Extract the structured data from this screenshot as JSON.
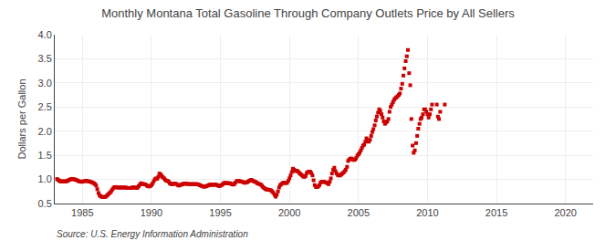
{
  "chart_data": {
    "type": "scatter",
    "title": "Monthly Montana Total Gasoline Through Company Outlets Price by All Sellers",
    "ylabel": "Dollars per Gallon",
    "annotations": [
      {
        "text": "Source: U.S. Energy Information Administration"
      }
    ],
    "color": "#cc0000",
    "marker": "square",
    "grid": true,
    "xlim": [
      1983.0,
      2022.0
    ],
    "ylim": [
      0.5,
      4.0
    ],
    "xticks": [
      1985,
      1990,
      1995,
      2000,
      2005,
      2010,
      2015,
      2020
    ],
    "yticks": [
      0.5,
      {
        "value": 1.0,
        "label": "1.0"
      },
      1.5,
      {
        "value": 2.0,
        "label": "2.0"
      },
      2.5,
      {
        "value": 3.0,
        "label": "3.0"
      },
      3.5,
      {
        "value": 4.0,
        "label": "4.0"
      }
    ],
    "x": [
      1983.17,
      1983.25,
      1983.33,
      1983.42,
      1983.5,
      1983.58,
      1983.67,
      1983.75,
      1983.83,
      1983.92,
      1984.0,
      1984.08,
      1984.17,
      1984.25,
      1984.33,
      1984.42,
      1984.5,
      1984.58,
      1984.67,
      1984.75,
      1984.83,
      1984.92,
      1985.0,
      1985.08,
      1985.17,
      1985.25,
      1985.33,
      1985.42,
      1985.5,
      1985.58,
      1985.67,
      1985.75,
      1985.83,
      1985.92,
      1986.0,
      1986.08,
      1986.17,
      1986.25,
      1986.33,
      1986.42,
      1986.5,
      1986.58,
      1986.67,
      1986.75,
      1986.83,
      1986.92,
      1987.0,
      1987.08,
      1987.17,
      1987.25,
      1987.33,
      1987.42,
      1987.5,
      1987.58,
      1987.67,
      1987.75,
      1987.83,
      1987.92,
      1988.0,
      1988.08,
      1988.17,
      1988.25,
      1988.33,
      1988.42,
      1988.5,
      1988.58,
      1988.67,
      1988.75,
      1988.83,
      1988.92,
      1989.0,
      1989.08,
      1989.17,
      1989.25,
      1989.33,
      1989.42,
      1989.5,
      1989.58,
      1989.67,
      1989.75,
      1989.83,
      1989.92,
      1990.0,
      1990.08,
      1990.17,
      1990.25,
      1990.33,
      1990.42,
      1990.5,
      1990.58,
      1990.67,
      1990.75,
      1990.83,
      1990.92,
      1991.0,
      1991.08,
      1991.17,
      1991.25,
      1991.33,
      1991.42,
      1991.5,
      1991.58,
      1991.67,
      1991.75,
      1991.83,
      1991.92,
      1992.0,
      1992.08,
      1992.17,
      1992.25,
      1992.33,
      1992.42,
      1992.5,
      1992.58,
      1992.67,
      1992.75,
      1992.83,
      1992.92,
      1993.0,
      1993.08,
      1993.17,
      1993.25,
      1993.33,
      1993.42,
      1993.5,
      1993.58,
      1993.67,
      1993.75,
      1993.83,
      1993.92,
      1994.0,
      1994.08,
      1994.17,
      1994.25,
      1994.33,
      1994.42,
      1994.5,
      1994.58,
      1994.67,
      1994.75,
      1994.83,
      1994.92,
      1995.0,
      1995.08,
      1995.17,
      1995.25,
      1995.33,
      1995.42,
      1995.5,
      1995.58,
      1995.67,
      1995.75,
      1995.83,
      1995.92,
      1996.0,
      1996.08,
      1996.17,
      1996.25,
      1996.33,
      1996.42,
      1996.5,
      1996.58,
      1996.67,
      1996.75,
      1996.83,
      1996.92,
      1997.0,
      1997.08,
      1997.17,
      1997.25,
      1997.33,
      1997.42,
      1997.5,
      1997.58,
      1997.67,
      1997.75,
      1997.83,
      1997.92,
      1998.0,
      1998.08,
      1998.17,
      1998.25,
      1998.33,
      1998.42,
      1998.5,
      1998.58,
      1998.67,
      1998.75,
      1998.83,
      1998.92,
      1999.0,
      1999.08,
      1999.17,
      1999.25,
      1999.33,
      1999.42,
      1999.5,
      1999.58,
      1999.67,
      1999.75,
      1999.83,
      1999.92,
      2000.0,
      2000.08,
      2000.17,
      2000.25,
      2000.33,
      2000.42,
      2000.5,
      2000.58,
      2000.67,
      2000.75,
      2000.83,
      2000.92,
      2001.0,
      2001.08,
      2001.17,
      2001.25,
      2001.33,
      2001.42,
      2001.5,
      2001.58,
      2001.67,
      2001.75,
      2001.83,
      2001.92,
      2002.0,
      2002.08,
      2002.17,
      2002.25,
      2002.33,
      2002.42,
      2002.5,
      2002.58,
      2002.67,
      2002.75,
      2002.83,
      2002.92,
      2003.0,
      2003.08,
      2003.17,
      2003.25,
      2003.33,
      2003.42,
      2003.5,
      2003.58,
      2003.67,
      2003.75,
      2003.83,
      2003.92,
      2004.0,
      2004.08,
      2004.17,
      2004.25,
      2004.33,
      2004.42,
      2004.5,
      2004.58,
      2004.67,
      2004.75,
      2004.83,
      2004.92,
      2005.0,
      2005.08,
      2005.17,
      2005.25,
      2005.33,
      2005.42,
      2005.5,
      2005.58,
      2005.67,
      2005.75,
      2005.83,
      2005.92,
      2006.0,
      2006.08,
      2006.17,
      2006.25,
      2006.33,
      2006.42,
      2006.5,
      2006.58,
      2006.67,
      2006.75,
      2006.83,
      2006.92,
      2007.0,
      2007.08,
      2007.17,
      2007.25,
      2007.33,
      2007.42,
      2007.5,
      2007.58,
      2007.67,
      2007.75,
      2007.83,
      2007.92,
      2008.0,
      2008.08,
      2008.17,
      2008.25,
      2008.33,
      2008.42,
      2008.5,
      2008.58,
      2008.67,
      2008.75,
      2008.83,
      2008.92,
      2009.0,
      2009.08,
      2009.17,
      2009.25,
      2009.33,
      2009.42,
      2009.5,
      2009.58,
      2009.67,
      2009.75,
      2009.83,
      2009.92,
      2010.0,
      2010.08,
      2010.17,
      2010.25,
      2010.33,
      2010.67,
      2010.75,
      2010.83,
      2010.92,
      2011.25
    ],
    "values": [
      1.009,
      0.991,
      0.971,
      0.958,
      0.96,
      0.962,
      0.959,
      0.957,
      0.961,
      0.969,
      0.985,
      0.993,
      1.006,
      1.012,
      1.005,
      1.001,
      0.995,
      0.988,
      0.973,
      0.963,
      0.956,
      0.95,
      0.953,
      0.961,
      0.964,
      0.971,
      0.97,
      0.96,
      0.957,
      0.952,
      0.942,
      0.932,
      0.921,
      0.902,
      0.872,
      0.798,
      0.719,
      0.67,
      0.648,
      0.639,
      0.634,
      0.632,
      0.641,
      0.657,
      0.68,
      0.703,
      0.725,
      0.753,
      0.79,
      0.82,
      0.841,
      0.842,
      0.833,
      0.832,
      0.831,
      0.832,
      0.831,
      0.831,
      0.832,
      0.833,
      0.831,
      0.821,
      0.821,
      0.822,
      0.822,
      0.831,
      0.833,
      0.833,
      0.831,
      0.822,
      0.832,
      0.862,
      0.893,
      0.92,
      0.91,
      0.9,
      0.901,
      0.893,
      0.873,
      0.862,
      0.852,
      0.862,
      0.882,
      0.912,
      0.962,
      1.002,
      1.022,
      1.012,
      1.052,
      1.122,
      1.102,
      1.072,
      1.042,
      1.022,
      0.992,
      0.972,
      0.972,
      0.952,
      0.922,
      0.902,
      0.901,
      0.911,
      0.911,
      0.911,
      0.901,
      0.882,
      0.872,
      0.882,
      0.892,
      0.902,
      0.911,
      0.911,
      0.911,
      0.911,
      0.902,
      0.902,
      0.902,
      0.902,
      0.902,
      0.902,
      0.902,
      0.901,
      0.901,
      0.892,
      0.882,
      0.872,
      0.862,
      0.852,
      0.851,
      0.852,
      0.862,
      0.872,
      0.882,
      0.892,
      0.892,
      0.882,
      0.892,
      0.892,
      0.892,
      0.882,
      0.872,
      0.862,
      0.872,
      0.882,
      0.902,
      0.922,
      0.932,
      0.922,
      0.922,
      0.922,
      0.922,
      0.912,
      0.902,
      0.892,
      0.902,
      0.932,
      0.962,
      0.972,
      0.972,
      0.962,
      0.952,
      0.952,
      0.942,
      0.932,
      0.932,
      0.942,
      0.952,
      0.972,
      0.982,
      0.992,
      0.972,
      0.962,
      0.952,
      0.942,
      0.922,
      0.912,
      0.902,
      0.892,
      0.872,
      0.842,
      0.822,
      0.802,
      0.792,
      0.792,
      0.782,
      0.782,
      0.772,
      0.752,
      0.722,
      0.682,
      0.642,
      0.682,
      0.752,
      0.832,
      0.882,
      0.902,
      0.922,
      0.932,
      0.932,
      0.922,
      0.932,
      0.972,
      1.022,
      1.082,
      1.152,
      1.222,
      1.202,
      1.172,
      1.182,
      1.172,
      1.152,
      1.122,
      1.102,
      1.082,
      1.062,
      1.052,
      1.072,
      1.132,
      1.152,
      1.162,
      1.162,
      1.132,
      1.082,
      0.982,
      0.882,
      0.842,
      0.842,
      0.852,
      0.882,
      0.932,
      0.952,
      0.952,
      0.952,
      0.942,
      0.932,
      0.922,
      0.902,
      0.952,
      1.022,
      1.122,
      1.202,
      1.242,
      1.172,
      1.122,
      1.092,
      1.082,
      1.082,
      1.102,
      1.122,
      1.142,
      1.172,
      1.202,
      1.262,
      1.382,
      1.412,
      1.432,
      1.432,
      1.412,
      1.402,
      1.412,
      1.442,
      1.492,
      1.522,
      1.552,
      1.602,
      1.652,
      1.702,
      1.722,
      1.782,
      1.852,
      1.792,
      1.782,
      1.822,
      1.902,
      1.982,
      2.042,
      2.122,
      2.222,
      2.302,
      2.382,
      2.452,
      2.422,
      2.352,
      2.282,
      2.202,
      2.152,
      2.182,
      2.202,
      2.252,
      2.402,
      2.502,
      2.552,
      2.602,
      2.652,
      2.682,
      2.702,
      2.722,
      2.752,
      2.782,
      2.882,
      2.982,
      3.152,
      3.302,
      3.452,
      3.552,
      3.682,
      3.202,
      2.952,
      2.252,
      1.702,
      1.552,
      1.602,
      1.752,
      1.902,
      2.052,
      2.152,
      2.252,
      2.282,
      2.352,
      2.452,
      2.452,
      2.402,
      2.352,
      2.282,
      2.352,
      2.452,
      2.552,
      2.552,
      2.302,
      2.252,
      2.402,
      2.552
    ]
  }
}
